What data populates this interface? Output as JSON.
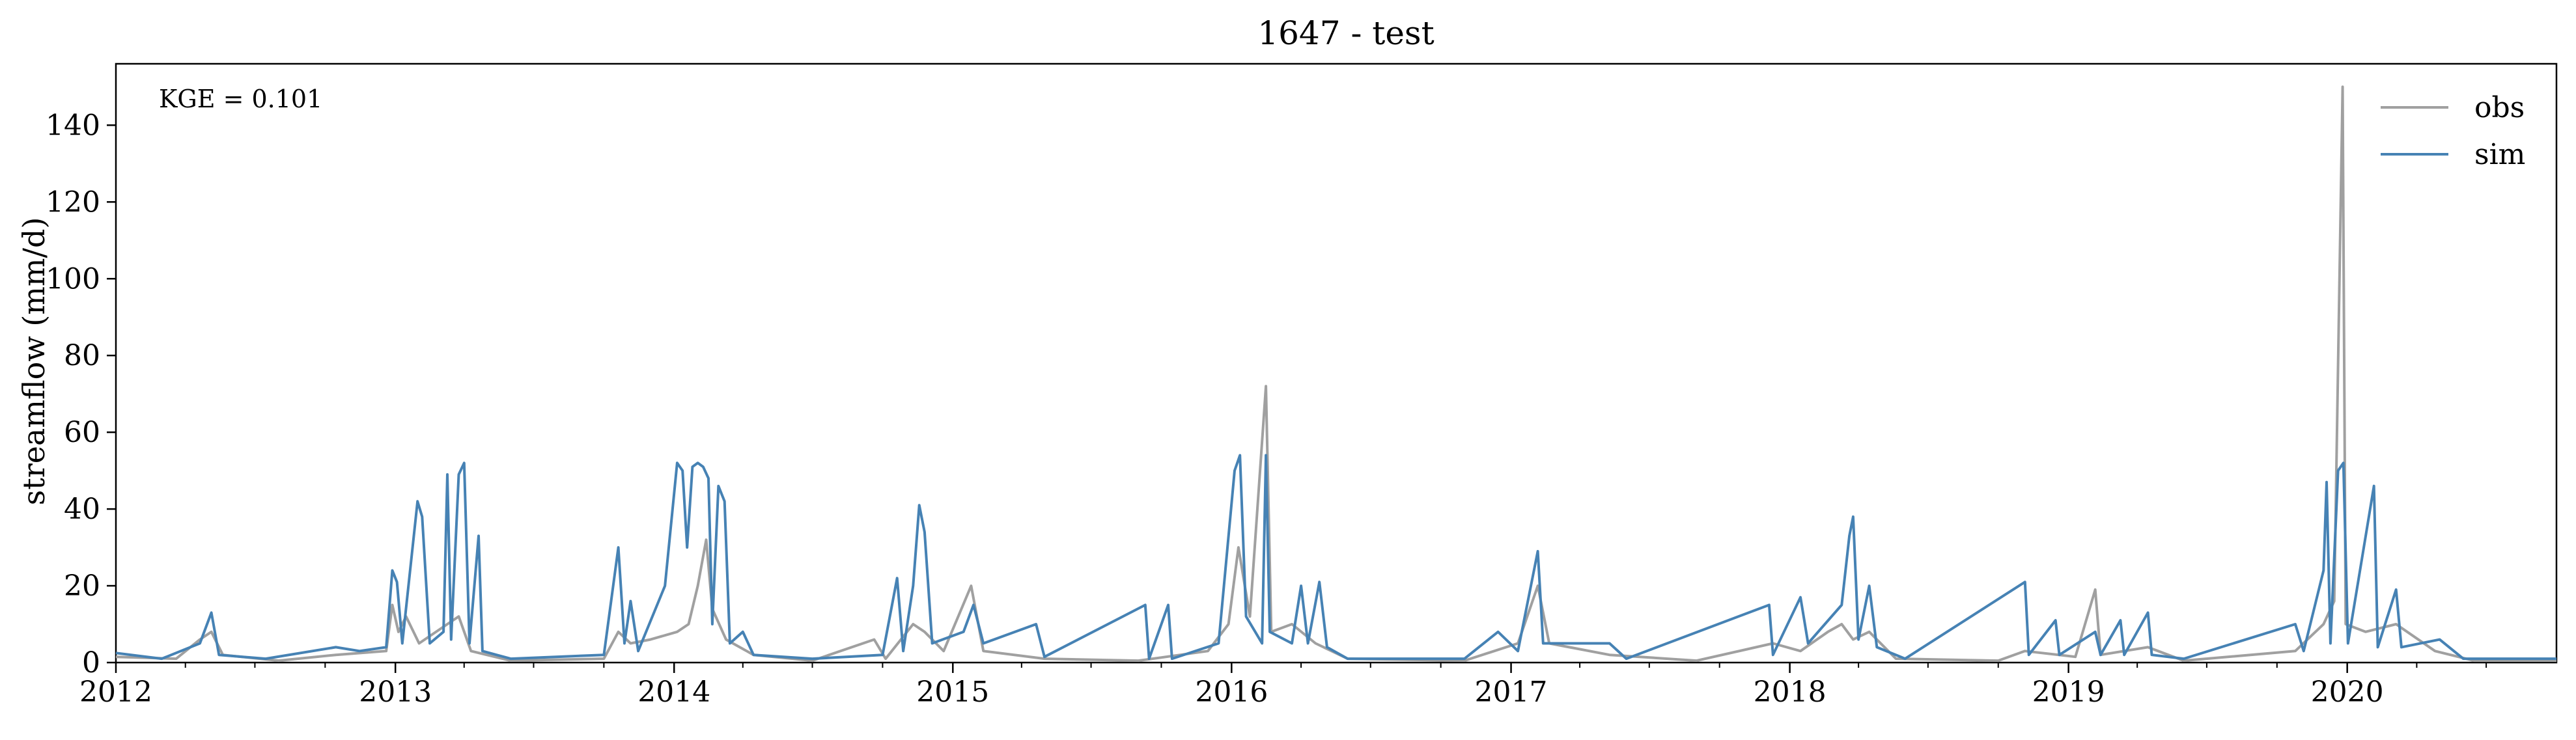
{
  "chart_data": {
    "type": "line",
    "title": "1647 - test",
    "xlabel": "",
    "ylabel": "streamflow (mm/d)",
    "annotation": "KGE = 0.101",
    "x_range": [
      "2012-01-01",
      "2020-10-01"
    ],
    "ylim": [
      0,
      156
    ],
    "yticks": [
      0,
      20,
      40,
      60,
      80,
      100,
      120,
      140
    ],
    "xticks": [
      {
        "label": "2012",
        "date": "2012-01-01"
      },
      {
        "label": "2013",
        "date": "2013-01-01"
      },
      {
        "label": "2014",
        "date": "2014-01-01"
      },
      {
        "label": "2015",
        "date": "2015-01-01"
      },
      {
        "label": "2016",
        "date": "2016-01-01"
      },
      {
        "label": "2017",
        "date": "2017-01-01"
      },
      {
        "label": "2018",
        "date": "2018-01-01"
      },
      {
        "label": "2019",
        "date": "2019-01-01"
      },
      {
        "label": "2020",
        "date": "2020-01-01"
      }
    ],
    "grid": false,
    "legend_position": "top-right",
    "series": [
      {
        "name": "obs",
        "color": "#a0a0a0",
        "points": [
          [
            "2012-01-01",
            1.5
          ],
          [
            "2012-03-20",
            1.0
          ],
          [
            "2012-04-20",
            6.0
          ],
          [
            "2012-05-05",
            8.0
          ],
          [
            "2012-05-20",
            2.0
          ],
          [
            "2012-08-01",
            0.5
          ],
          [
            "2012-10-15",
            2.0
          ],
          [
            "2012-12-20",
            3.0
          ],
          [
            "2012-12-28",
            15.0
          ],
          [
            "2013-01-05",
            8.0
          ],
          [
            "2013-01-15",
            12.0
          ],
          [
            "2013-02-01",
            5.0
          ],
          [
            "2013-03-10",
            10.0
          ],
          [
            "2013-03-25",
            12.0
          ],
          [
            "2013-04-10",
            3.0
          ],
          [
            "2013-06-01",
            0.5
          ],
          [
            "2013-10-01",
            1.0
          ],
          [
            "2013-10-20",
            8.0
          ],
          [
            "2013-11-05",
            5.0
          ],
          [
            "2013-12-01",
            6.0
          ],
          [
            "2014-01-05",
            8.0
          ],
          [
            "2014-01-20",
            10.0
          ],
          [
            "2014-02-01",
            20.0
          ],
          [
            "2014-02-12",
            32.0
          ],
          [
            "2014-02-20",
            14.0
          ],
          [
            "2014-03-10",
            6.0
          ],
          [
            "2014-04-15",
            2.0
          ],
          [
            "2014-07-01",
            0.5
          ],
          [
            "2014-09-20",
            6.0
          ],
          [
            "2014-10-05",
            1.0
          ],
          [
            "2014-11-10",
            10.0
          ],
          [
            "2014-11-25",
            8.0
          ],
          [
            "2014-12-20",
            3.0
          ],
          [
            "2015-01-25",
            20.0
          ],
          [
            "2015-02-10",
            3.0
          ],
          [
            "2015-05-01",
            1.0
          ],
          [
            "2015-09-01",
            0.5
          ],
          [
            "2015-12-01",
            3.0
          ],
          [
            "2015-12-28",
            10.0
          ],
          [
            "2016-01-10",
            30.0
          ],
          [
            "2016-01-25",
            12.0
          ],
          [
            "2016-02-15",
            72.0
          ],
          [
            "2016-02-22",
            8.0
          ],
          [
            "2016-03-20",
            10.0
          ],
          [
            "2016-04-20",
            5.0
          ],
          [
            "2016-06-01",
            1.0
          ],
          [
            "2016-11-01",
            0.5
          ],
          [
            "2017-01-10",
            5.0
          ],
          [
            "2017-02-05",
            20.0
          ],
          [
            "2017-02-20",
            5.0
          ],
          [
            "2017-05-10",
            2.0
          ],
          [
            "2017-09-01",
            0.5
          ],
          [
            "2017-12-10",
            5.0
          ],
          [
            "2018-01-15",
            3.0
          ],
          [
            "2018-02-20",
            8.0
          ],
          [
            "2018-03-10",
            10.0
          ],
          [
            "2018-03-25",
            6.0
          ],
          [
            "2018-04-15",
            8.0
          ],
          [
            "2018-05-20",
            1.0
          ],
          [
            "2018-10-01",
            0.5
          ],
          [
            "2018-11-05",
            3.0
          ],
          [
            "2019-01-10",
            1.5
          ],
          [
            "2019-02-05",
            19.0
          ],
          [
            "2019-02-12",
            2.0
          ],
          [
            "2019-04-15",
            4.0
          ],
          [
            "2019-06-01",
            0.5
          ],
          [
            "2019-10-25",
            3.0
          ],
          [
            "2019-12-01",
            10.0
          ],
          [
            "2019-12-15",
            16.0
          ],
          [
            "2019-12-26",
            150.0
          ],
          [
            "2019-12-30",
            10.0
          ],
          [
            "2020-01-25",
            8.0
          ],
          [
            "2020-03-05",
            10.0
          ],
          [
            "2020-04-25",
            3.0
          ],
          [
            "2020-06-15",
            0.5
          ],
          [
            "2020-10-01",
            0.5
          ]
        ]
      },
      {
        "name": "sim",
        "color": "#4682b4",
        "points": [
          [
            "2012-01-01",
            2.5
          ],
          [
            "2012-03-01",
            1.0
          ],
          [
            "2012-04-20",
            5.0
          ],
          [
            "2012-05-05",
            13.0
          ],
          [
            "2012-05-15",
            2.0
          ],
          [
            "2012-07-15",
            1.0
          ],
          [
            "2012-10-15",
            4.0
          ],
          [
            "2012-11-15",
            3.0
          ],
          [
            "2012-12-20",
            4.0
          ],
          [
            "2012-12-28",
            24.0
          ],
          [
            "2013-01-03",
            21.0
          ],
          [
            "2013-01-10",
            5.0
          ],
          [
            "2013-01-30",
            42.0
          ],
          [
            "2013-02-05",
            38.0
          ],
          [
            "2013-02-15",
            5.0
          ],
          [
            "2013-03-05",
            8.0
          ],
          [
            "2013-03-10",
            49.0
          ],
          [
            "2013-03-15",
            6.0
          ],
          [
            "2013-03-25",
            49.0
          ],
          [
            "2013-04-01",
            52.0
          ],
          [
            "2013-04-08",
            5.0
          ],
          [
            "2013-04-20",
            33.0
          ],
          [
            "2013-04-25",
            3.0
          ],
          [
            "2013-06-01",
            1.0
          ],
          [
            "2013-10-01",
            2.0
          ],
          [
            "2013-10-20",
            30.0
          ],
          [
            "2013-10-28",
            5.0
          ],
          [
            "2013-11-05",
            16.0
          ],
          [
            "2013-11-15",
            3.0
          ],
          [
            "2013-12-20",
            20.0
          ],
          [
            "2014-01-05",
            52.0
          ],
          [
            "2014-01-12",
            50.0
          ],
          [
            "2014-01-18",
            30.0
          ],
          [
            "2014-01-25",
            51.0
          ],
          [
            "2014-02-01",
            52.0
          ],
          [
            "2014-02-08",
            51.0
          ],
          [
            "2014-02-15",
            48.0
          ],
          [
            "2014-02-20",
            10.0
          ],
          [
            "2014-02-28",
            46.0
          ],
          [
            "2014-03-08",
            42.0
          ],
          [
            "2014-03-15",
            5.0
          ],
          [
            "2014-04-01",
            8.0
          ],
          [
            "2014-04-15",
            2.0
          ],
          [
            "2014-07-01",
            1.0
          ],
          [
            "2014-10-01",
            2.0
          ],
          [
            "2014-10-20",
            22.0
          ],
          [
            "2014-10-28",
            3.0
          ],
          [
            "2014-11-10",
            20.0
          ],
          [
            "2014-11-18",
            41.0
          ],
          [
            "2014-11-25",
            34.0
          ],
          [
            "2014-12-05",
            5.0
          ],
          [
            "2015-01-15",
            8.0
          ],
          [
            "2015-01-28",
            15.0
          ],
          [
            "2015-02-10",
            5.0
          ],
          [
            "2015-04-20",
            10.0
          ],
          [
            "2015-05-01",
            1.5
          ],
          [
            "2015-09-10",
            15.0
          ],
          [
            "2015-09-15",
            1.0
          ],
          [
            "2015-10-10",
            15.0
          ],
          [
            "2015-10-15",
            1.0
          ],
          [
            "2015-12-15",
            5.0
          ],
          [
            "2016-01-05",
            50.0
          ],
          [
            "2016-01-12",
            54.0
          ],
          [
            "2016-01-20",
            12.0
          ],
          [
            "2016-02-10",
            5.0
          ],
          [
            "2016-02-15",
            54.0
          ],
          [
            "2016-02-20",
            8.0
          ],
          [
            "2016-03-20",
            5.0
          ],
          [
            "2016-04-01",
            20.0
          ],
          [
            "2016-04-10",
            5.0
          ],
          [
            "2016-04-25",
            21.0
          ],
          [
            "2016-05-05",
            4.0
          ],
          [
            "2016-06-01",
            1.0
          ],
          [
            "2016-11-01",
            1.0
          ],
          [
            "2016-12-15",
            8.0
          ],
          [
            "2017-01-10",
            3.0
          ],
          [
            "2017-02-05",
            29.0
          ],
          [
            "2017-02-12",
            5.0
          ],
          [
            "2017-05-10",
            5.0
          ],
          [
            "2017-06-01",
            1.0
          ],
          [
            "2017-12-05",
            15.0
          ],
          [
            "2017-12-10",
            2.0
          ],
          [
            "2018-01-15",
            17.0
          ],
          [
            "2018-01-25",
            5.0
          ],
          [
            "2018-03-10",
            15.0
          ],
          [
            "2018-03-20",
            33.0
          ],
          [
            "2018-03-25",
            38.0
          ],
          [
            "2018-04-01",
            6.0
          ],
          [
            "2018-04-15",
            20.0
          ],
          [
            "2018-04-25",
            4.0
          ],
          [
            "2018-06-01",
            1.0
          ],
          [
            "2018-11-05",
            21.0
          ],
          [
            "2018-11-10",
            2.0
          ],
          [
            "2018-12-15",
            11.0
          ],
          [
            "2018-12-20",
            2.0
          ],
          [
            "2019-02-05",
            8.0
          ],
          [
            "2019-02-12",
            2.0
          ],
          [
            "2019-03-10",
            11.0
          ],
          [
            "2019-03-15",
            2.0
          ],
          [
            "2019-04-15",
            13.0
          ],
          [
            "2019-04-20",
            2.0
          ],
          [
            "2019-06-01",
            1.0
          ],
          [
            "2019-10-25",
            10.0
          ],
          [
            "2019-11-05",
            3.0
          ],
          [
            "2019-12-01",
            24.0
          ],
          [
            "2019-12-05",
            47.0
          ],
          [
            "2019-12-10",
            5.0
          ],
          [
            "2019-12-20",
            50.0
          ],
          [
            "2019-12-27",
            52.0
          ],
          [
            "2020-01-02",
            5.0
          ],
          [
            "2020-02-05",
            46.0
          ],
          [
            "2020-02-10",
            4.0
          ],
          [
            "2020-03-05",
            19.0
          ],
          [
            "2020-03-12",
            4.0
          ],
          [
            "2020-05-01",
            6.0
          ],
          [
            "2020-06-01",
            1.0
          ],
          [
            "2020-10-01",
            1.0
          ]
        ]
      }
    ]
  }
}
